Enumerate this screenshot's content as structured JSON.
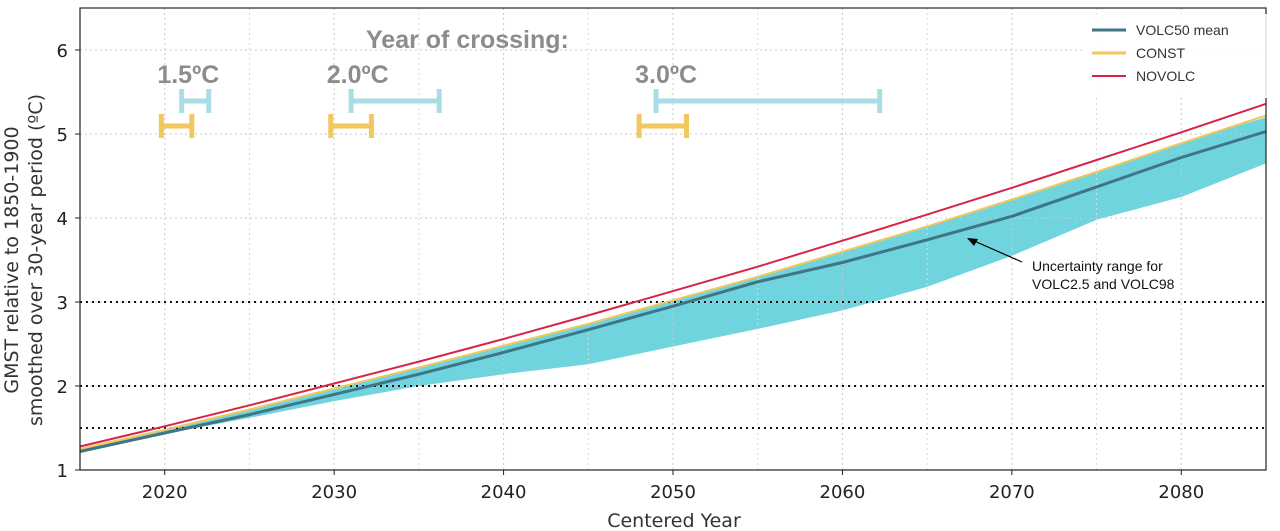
{
  "chart_data": {
    "type": "line",
    "xlabel": "Centered Year",
    "ylabel_line1": "GMST relative to 1850-1900",
    "ylabel_line2": "smoothed over 30-year period (ºC)",
    "xlim": [
      2015,
      2085
    ],
    "ylim": [
      1,
      6.5
    ],
    "xticks": [
      2020,
      2030,
      2040,
      2050,
      2060,
      2070,
      2080
    ],
    "yticks": [
      1,
      2,
      3,
      4,
      5,
      6
    ],
    "grid": true,
    "legend_position": "top-right",
    "x": [
      2015,
      2020,
      2025,
      2030,
      2035,
      2040,
      2045,
      2050,
      2055,
      2060,
      2065,
      2070,
      2075,
      2080,
      2085
    ],
    "series": [
      {
        "name": "VOLC50 mean",
        "color": "#3f7584",
        "values": [
          1.22,
          1.44,
          1.66,
          1.9,
          2.14,
          2.4,
          2.67,
          2.95,
          3.24,
          3.47,
          3.74,
          4.02,
          4.37,
          4.72,
          5.03
        ]
      },
      {
        "name": "CONST",
        "color": "#f2c75c",
        "values": [
          1.25,
          1.48,
          1.72,
          1.97,
          2.22,
          2.48,
          2.74,
          3.02,
          3.3,
          3.6,
          3.9,
          4.22,
          4.55,
          4.89,
          5.22
        ]
      },
      {
        "name": "NOVOLC",
        "color": "#d5254a",
        "values": [
          1.28,
          1.52,
          1.77,
          2.03,
          2.29,
          2.56,
          2.84,
          3.13,
          3.42,
          3.73,
          4.04,
          4.36,
          4.69,
          5.02,
          5.36
        ]
      }
    ],
    "uncertainty_band": {
      "label_line1": "Uncertainty range for",
      "label_line2": "VOLC2.5 and VOLC98",
      "color": "#6fd4de",
      "lower": [
        1.22,
        1.43,
        1.62,
        1.82,
        2.0,
        2.14,
        2.26,
        2.47,
        2.68,
        2.9,
        3.18,
        3.55,
        3.98,
        4.25,
        4.65
      ],
      "upper": [
        1.25,
        1.47,
        1.72,
        1.96,
        2.22,
        2.48,
        2.75,
        3.03,
        3.31,
        3.61,
        3.91,
        4.23,
        4.56,
        4.9,
        5.2
      ]
    },
    "reference_lines": [
      1.5,
      2.0,
      3.0
    ],
    "crossing": {
      "title": "Year of crossing:",
      "levels": [
        {
          "label": "1.5ºC",
          "volc_range": [
            2021.0,
            2022.6
          ],
          "const_range": [
            2019.8,
            2021.6
          ]
        },
        {
          "label": "2.0ºC",
          "volc_range": [
            2031.0,
            2036.2
          ],
          "const_range": [
            2029.8,
            2032.2
          ]
        },
        {
          "label": "3.0ºC",
          "volc_range": [
            2049.0,
            2062.2
          ],
          "const_range": [
            2048.0,
            2050.8
          ]
        }
      ],
      "volc_color": "#a8dde6",
      "const_color": "#f2c75c"
    }
  }
}
